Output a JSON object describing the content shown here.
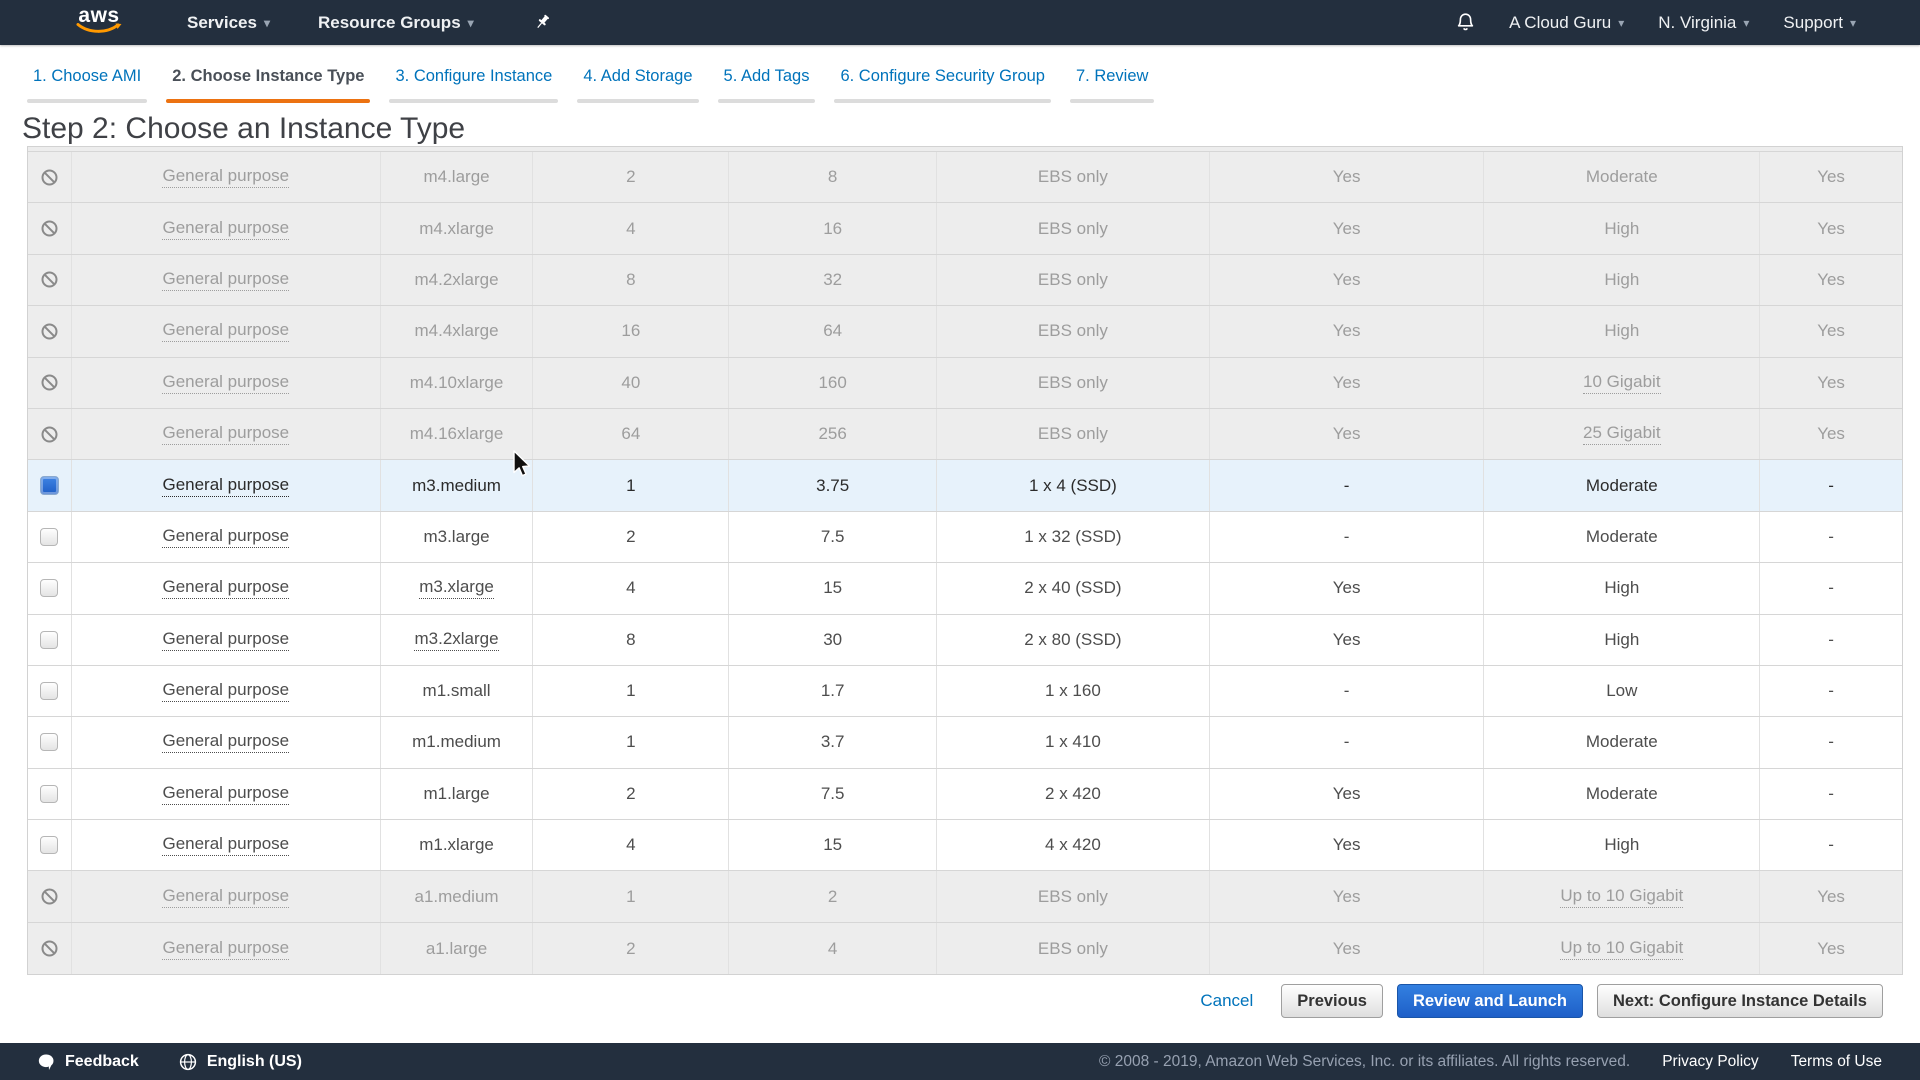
{
  "navbar": {
    "logo": "aws",
    "services": "Services",
    "resource_groups": "Resource Groups",
    "account": "A Cloud Guru",
    "region": "N. Virginia",
    "support": "Support"
  },
  "icons": {
    "caret": "▾",
    "bell": "bell-icon",
    "pushpin": "pushpin-icon",
    "feedback": "speech-bubble-icon",
    "language": "globe-icon",
    "disabled_row": "no-entry-icon"
  },
  "wizard": {
    "steps": [
      {
        "label": "1. Choose AMI",
        "active": false
      },
      {
        "label": "2. Choose Instance Type",
        "active": true
      },
      {
        "label": "3. Configure Instance",
        "active": false
      },
      {
        "label": "4. Add Storage",
        "active": false
      },
      {
        "label": "5. Add Tags",
        "active": false
      },
      {
        "label": "6. Configure Security Group",
        "active": false
      },
      {
        "label": "7. Review",
        "active": false
      }
    ]
  },
  "page": {
    "title": "Step 2: Choose an Instance Type"
  },
  "table": {
    "rows": [
      {
        "state": "disabled",
        "family": "General purpose",
        "type": "m4.large",
        "type_dotted": false,
        "vcpus": "2",
        "memory": "8",
        "storage": "EBS only",
        "ebs": "Yes",
        "network": "Moderate",
        "network_dotted": false,
        "ipv6": "Yes"
      },
      {
        "state": "disabled",
        "family": "General purpose",
        "type": "m4.xlarge",
        "type_dotted": false,
        "vcpus": "4",
        "memory": "16",
        "storage": "EBS only",
        "ebs": "Yes",
        "network": "High",
        "network_dotted": false,
        "ipv6": "Yes"
      },
      {
        "state": "disabled",
        "family": "General purpose",
        "type": "m4.2xlarge",
        "type_dotted": false,
        "vcpus": "8",
        "memory": "32",
        "storage": "EBS only",
        "ebs": "Yes",
        "network": "High",
        "network_dotted": false,
        "ipv6": "Yes"
      },
      {
        "state": "disabled",
        "family": "General purpose",
        "type": "m4.4xlarge",
        "type_dotted": false,
        "vcpus": "16",
        "memory": "64",
        "storage": "EBS only",
        "ebs": "Yes",
        "network": "High",
        "network_dotted": false,
        "ipv6": "Yes"
      },
      {
        "state": "disabled",
        "family": "General purpose",
        "type": "m4.10xlarge",
        "type_dotted": false,
        "vcpus": "40",
        "memory": "160",
        "storage": "EBS only",
        "ebs": "Yes",
        "network": "10 Gigabit",
        "network_dotted": true,
        "ipv6": "Yes"
      },
      {
        "state": "disabled",
        "family": "General purpose",
        "type": "m4.16xlarge",
        "type_dotted": false,
        "vcpus": "64",
        "memory": "256",
        "storage": "EBS only",
        "ebs": "Yes",
        "network": "25 Gigabit",
        "network_dotted": true,
        "ipv6": "Yes"
      },
      {
        "state": "selected",
        "family": "General purpose",
        "type": "m3.medium",
        "type_dotted": false,
        "vcpus": "1",
        "memory": "3.75",
        "storage": "1 x 4 (SSD)",
        "ebs": "-",
        "network": "Moderate",
        "network_dotted": false,
        "ipv6": "-"
      },
      {
        "state": "enabled",
        "family": "General purpose",
        "type": "m3.large",
        "type_dotted": false,
        "vcpus": "2",
        "memory": "7.5",
        "storage": "1 x 32 (SSD)",
        "ebs": "-",
        "network": "Moderate",
        "network_dotted": false,
        "ipv6": "-"
      },
      {
        "state": "enabled",
        "family": "General purpose",
        "type": "m3.xlarge",
        "type_dotted": true,
        "vcpus": "4",
        "memory": "15",
        "storage": "2 x 40 (SSD)",
        "ebs": "Yes",
        "network": "High",
        "network_dotted": false,
        "ipv6": "-"
      },
      {
        "state": "enabled",
        "family": "General purpose",
        "type": "m3.2xlarge",
        "type_dotted": true,
        "vcpus": "8",
        "memory": "30",
        "storage": "2 x 80 (SSD)",
        "ebs": "Yes",
        "network": "High",
        "network_dotted": false,
        "ipv6": "-"
      },
      {
        "state": "enabled",
        "family": "General purpose",
        "type": "m1.small",
        "type_dotted": false,
        "vcpus": "1",
        "memory": "1.7",
        "storage": "1 x 160",
        "ebs": "-",
        "network": "Low",
        "network_dotted": false,
        "ipv6": "-"
      },
      {
        "state": "enabled",
        "family": "General purpose",
        "type": "m1.medium",
        "type_dotted": false,
        "vcpus": "1",
        "memory": "3.7",
        "storage": "1 x 410",
        "ebs": "-",
        "network": "Moderate",
        "network_dotted": false,
        "ipv6": "-"
      },
      {
        "state": "enabled",
        "family": "General purpose",
        "type": "m1.large",
        "type_dotted": false,
        "vcpus": "2",
        "memory": "7.5",
        "storage": "2 x 420",
        "ebs": "Yes",
        "network": "Moderate",
        "network_dotted": false,
        "ipv6": "-"
      },
      {
        "state": "enabled",
        "family": "General purpose",
        "type": "m1.xlarge",
        "type_dotted": false,
        "vcpus": "4",
        "memory": "15",
        "storage": "4 x 420",
        "ebs": "Yes",
        "network": "High",
        "network_dotted": false,
        "ipv6": "-"
      },
      {
        "state": "disabled",
        "family": "General purpose",
        "type": "a1.medium",
        "type_dotted": false,
        "vcpus": "1",
        "memory": "2",
        "storage": "EBS only",
        "ebs": "Yes",
        "network": "Up to 10 Gigabit",
        "network_dotted": true,
        "ipv6": "Yes"
      },
      {
        "state": "disabled",
        "family": "General purpose",
        "type": "a1.large",
        "type_dotted": false,
        "vcpus": "2",
        "memory": "4",
        "storage": "EBS only",
        "ebs": "Yes",
        "network": "Up to 10 Gigabit",
        "network_dotted": true,
        "ipv6": "Yes"
      }
    ]
  },
  "actions": {
    "cancel": "Cancel",
    "previous": "Previous",
    "review_and_launch": "Review and Launch",
    "next": "Next: Configure Instance Details"
  },
  "footer": {
    "feedback": "Feedback",
    "language": "English (US)",
    "copyright": "© 2008 - 2019, Amazon Web Services, Inc. or its affiliates. All rights reserved.",
    "privacy": "Privacy Policy",
    "terms": "Terms of Use"
  },
  "colors": {
    "navbar_bg": "#232f3e",
    "accent_orange": "#ec7211",
    "aws_smile_orange": "#ff9900",
    "link_blue": "#0073bb",
    "primary_button_blue": "#2268cc",
    "selected_row_bg": "#e7f2fb",
    "disabled_row_bg": "#ededed"
  }
}
